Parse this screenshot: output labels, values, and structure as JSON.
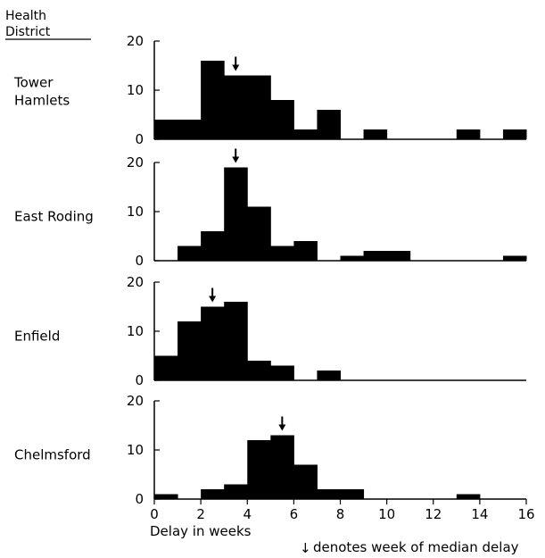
{
  "header": {
    "line1": "Health",
    "line2": "District"
  },
  "chart_data": {
    "type": "bar",
    "x_bins": [
      0,
      1,
      2,
      3,
      4,
      5,
      6,
      7,
      8,
      9,
      10,
      11,
      12,
      13,
      14,
      15
    ],
    "xlim": [
      0,
      16
    ],
    "x_ticks": [
      "0",
      "2",
      "4",
      "6",
      "8",
      "10",
      "12",
      "14",
      "16"
    ],
    "x_tick_values": [
      0,
      2,
      4,
      6,
      8,
      10,
      12,
      14,
      16
    ],
    "xlabel": "Delay in weeks",
    "ylim": [
      0,
      20
    ],
    "y_ticks": [
      "0",
      "10",
      "20"
    ],
    "y_tick_values": [
      0,
      10,
      20
    ],
    "legend": {
      "symbol": "↓",
      "text": "denotes week of median delay",
      "placement": "bottom-right"
    },
    "series": [
      {
        "name": "Tower",
        "name2": "Hamlets",
        "values": [
          4,
          4,
          16,
          13,
          13,
          8,
          2,
          6,
          0,
          2,
          0,
          0,
          0,
          2,
          0,
          2
        ],
        "median": 3.5
      },
      {
        "name": "East Roding",
        "name2": "",
        "values": [
          0,
          3,
          6,
          19,
          11,
          3,
          4,
          0,
          1,
          2,
          2,
          0,
          0,
          0,
          0,
          1
        ],
        "median": 3.5
      },
      {
        "name": "Enfield",
        "name2": "",
        "values": [
          5,
          12,
          15,
          16,
          4,
          3,
          0,
          2,
          0,
          0,
          0,
          0,
          0,
          0,
          0,
          0
        ],
        "median": 2.5
      },
      {
        "name": "Chelmsford",
        "name2": "",
        "values": [
          1,
          0,
          2,
          3,
          12,
          13,
          7,
          2,
          2,
          0,
          0,
          0,
          0,
          1,
          0,
          0
        ],
        "median": 5.5
      }
    ]
  }
}
